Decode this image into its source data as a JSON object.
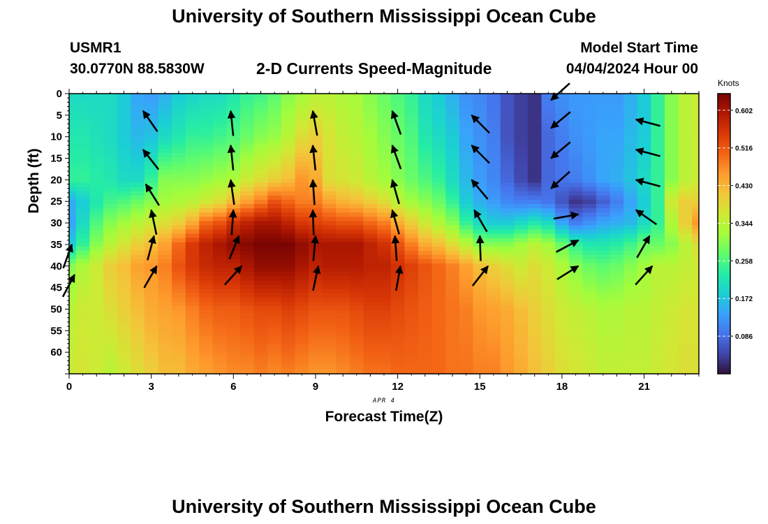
{
  "header": {
    "title": "University of Southern Mississippi Ocean Cube",
    "station_id": "USMR1",
    "location": "30.0770N  88.5830W",
    "plot_title": "2-D Currents Speed-Magnitude",
    "model_start_label": "Model Start Time",
    "model_start_value": "04/04/2024 Hour 00"
  },
  "footer": {
    "title": "University of Southern Mississippi Ocean Cube"
  },
  "chart_data": {
    "type": "heatmap",
    "title": "2-D Currents Speed-Magnitude",
    "xlabel": "Forecast Time(Z)",
    "ylabel": "Depth (ft)",
    "date_label": "APR 4",
    "xlim": [
      0,
      23
    ],
    "ylim": [
      65,
      0
    ],
    "x_ticks": [
      "0",
      "3",
      "6",
      "9",
      "12",
      "15",
      "18",
      "21"
    ],
    "x_tick_values": [
      0,
      3,
      6,
      9,
      12,
      15,
      18,
      21
    ],
    "y_ticks": [
      "0",
      "5",
      "10",
      "15",
      "20",
      "25",
      "30",
      "35",
      "40",
      "45",
      "50",
      "55",
      "60"
    ],
    "y_tick_values": [
      0,
      5,
      10,
      15,
      20,
      25,
      30,
      35,
      40,
      45,
      50,
      55,
      60
    ],
    "colorbar": {
      "unit": "Knots",
      "range": [
        0,
        0.64
      ],
      "ticks": [
        "0.602",
        "0.516",
        "0.430",
        "0.344",
        "0.258",
        "0.172",
        "0.086"
      ],
      "tick_values": [
        0.602,
        0.516,
        0.43,
        0.344,
        0.258,
        0.172,
        0.086
      ],
      "colors": [
        "#30123b",
        "#4145ab",
        "#4675ed",
        "#39a2fc",
        "#1bcfd4",
        "#24eca6",
        "#61fc6c",
        "#a4fc3b",
        "#d1e834",
        "#f3c63a",
        "#fe9b2d",
        "#f36315",
        "#d93806",
        "#b11901",
        "#7a0402"
      ]
    },
    "grid": false,
    "speed_anchors": {
      "hours": [
        0,
        0.5,
        1,
        1.5,
        2,
        2.5,
        3,
        3.5,
        4,
        4.5,
        5,
        5.5,
        6,
        6.5,
        7,
        7.5,
        8,
        8.5,
        9,
        9.5,
        10,
        10.5,
        11,
        11.5,
        12,
        12.5,
        13,
        13.5,
        14,
        14.5,
        15,
        15.5,
        16,
        16.5,
        17,
        17.5,
        18,
        18.5,
        19,
        19.5,
        20,
        20.5,
        21,
        21.5,
        22,
        22.5,
        23
      ],
      "depths": [
        0,
        10,
        20,
        25,
        30,
        35,
        40,
        50,
        65
      ],
      "speeds": [
        [
          0.2,
          0.22,
          0.24,
          0.15,
          0.14,
          0.18,
          0.3,
          0.34,
          0.36
        ],
        [
          0.2,
          0.22,
          0.24,
          0.18,
          0.2,
          0.24,
          0.33,
          0.36,
          0.37
        ],
        [
          0.2,
          0.21,
          0.23,
          0.22,
          0.26,
          0.3,
          0.36,
          0.36,
          0.36
        ],
        [
          0.2,
          0.2,
          0.22,
          0.25,
          0.3,
          0.34,
          0.4,
          0.38,
          0.34
        ],
        [
          0.18,
          0.18,
          0.2,
          0.26,
          0.32,
          0.37,
          0.42,
          0.4,
          0.36
        ],
        [
          0.14,
          0.16,
          0.2,
          0.28,
          0.34,
          0.4,
          0.45,
          0.42,
          0.38
        ],
        [
          0.13,
          0.17,
          0.24,
          0.3,
          0.36,
          0.42,
          0.46,
          0.44,
          0.4
        ],
        [
          0.15,
          0.2,
          0.3,
          0.32,
          0.38,
          0.45,
          0.48,
          0.45,
          0.42
        ],
        [
          0.18,
          0.22,
          0.3,
          0.33,
          0.4,
          0.5,
          0.52,
          0.46,
          0.42
        ],
        [
          0.19,
          0.24,
          0.3,
          0.34,
          0.44,
          0.55,
          0.55,
          0.48,
          0.44
        ],
        [
          0.2,
          0.24,
          0.31,
          0.36,
          0.5,
          0.58,
          0.57,
          0.5,
          0.45
        ],
        [
          0.2,
          0.25,
          0.32,
          0.38,
          0.52,
          0.6,
          0.58,
          0.51,
          0.46
        ],
        [
          0.22,
          0.26,
          0.33,
          0.42,
          0.56,
          0.62,
          0.58,
          0.51,
          0.47
        ],
        [
          0.24,
          0.28,
          0.36,
          0.45,
          0.58,
          0.63,
          0.6,
          0.52,
          0.47
        ],
        [
          0.25,
          0.3,
          0.38,
          0.48,
          0.6,
          0.64,
          0.62,
          0.53,
          0.48
        ],
        [
          0.27,
          0.31,
          0.4,
          0.52,
          0.6,
          0.64,
          0.62,
          0.53,
          0.47
        ],
        [
          0.3,
          0.34,
          0.42,
          0.5,
          0.58,
          0.64,
          0.62,
          0.54,
          0.48
        ],
        [
          0.32,
          0.38,
          0.46,
          0.48,
          0.55,
          0.62,
          0.6,
          0.53,
          0.47
        ],
        [
          0.34,
          0.4,
          0.44,
          0.48,
          0.54,
          0.6,
          0.58,
          0.52,
          0.46
        ],
        [
          0.34,
          0.37,
          0.38,
          0.45,
          0.53,
          0.6,
          0.59,
          0.52,
          0.46
        ],
        [
          0.33,
          0.35,
          0.37,
          0.43,
          0.52,
          0.6,
          0.59,
          0.52,
          0.47
        ],
        [
          0.32,
          0.34,
          0.36,
          0.42,
          0.52,
          0.6,
          0.59,
          0.53,
          0.48
        ],
        [
          0.3,
          0.32,
          0.34,
          0.4,
          0.5,
          0.58,
          0.58,
          0.54,
          0.49
        ],
        [
          0.28,
          0.3,
          0.32,
          0.38,
          0.48,
          0.56,
          0.58,
          0.54,
          0.49
        ],
        [
          0.26,
          0.28,
          0.3,
          0.34,
          0.44,
          0.52,
          0.56,
          0.53,
          0.5
        ],
        [
          0.24,
          0.26,
          0.28,
          0.32,
          0.4,
          0.48,
          0.54,
          0.52,
          0.5
        ],
        [
          0.2,
          0.22,
          0.26,
          0.3,
          0.36,
          0.44,
          0.52,
          0.51,
          0.5
        ],
        [
          0.18,
          0.2,
          0.24,
          0.28,
          0.33,
          0.42,
          0.5,
          0.5,
          0.5
        ],
        [
          0.15,
          0.18,
          0.2,
          0.24,
          0.3,
          0.38,
          0.48,
          0.49,
          0.49
        ],
        [
          0.12,
          0.14,
          0.16,
          0.18,
          0.24,
          0.34,
          0.45,
          0.48,
          0.49
        ],
        [
          0.11,
          0.12,
          0.13,
          0.15,
          0.2,
          0.3,
          0.42,
          0.46,
          0.48
        ],
        [
          0.09,
          0.1,
          0.11,
          0.13,
          0.18,
          0.3,
          0.4,
          0.45,
          0.48
        ],
        [
          0.06,
          0.06,
          0.08,
          0.11,
          0.18,
          0.3,
          0.38,
          0.44,
          0.46
        ],
        [
          0.04,
          0.04,
          0.05,
          0.1,
          0.2,
          0.32,
          0.36,
          0.42,
          0.44
        ],
        [
          0.03,
          0.03,
          0.03,
          0.1,
          0.22,
          0.34,
          0.38,
          0.4,
          0.42
        ],
        [
          0.1,
          0.08,
          0.08,
          0.09,
          0.2,
          0.32,
          0.36,
          0.38,
          0.4
        ],
        [
          0.12,
          0.1,
          0.09,
          0.06,
          0.14,
          0.28,
          0.33,
          0.36,
          0.38
        ],
        [
          0.13,
          0.12,
          0.1,
          0.03,
          0.1,
          0.24,
          0.3,
          0.35,
          0.37
        ],
        [
          0.13,
          0.13,
          0.12,
          0.04,
          0.12,
          0.22,
          0.28,
          0.34,
          0.36
        ],
        [
          0.13,
          0.14,
          0.14,
          0.07,
          0.14,
          0.22,
          0.27,
          0.33,
          0.35
        ],
        [
          0.13,
          0.14,
          0.15,
          0.1,
          0.15,
          0.23,
          0.28,
          0.33,
          0.35
        ],
        [
          0.15,
          0.16,
          0.17,
          0.14,
          0.16,
          0.25,
          0.3,
          0.34,
          0.35
        ],
        [
          0.18,
          0.18,
          0.2,
          0.18,
          0.2,
          0.28,
          0.32,
          0.34,
          0.35
        ],
        [
          0.24,
          0.24,
          0.24,
          0.24,
          0.24,
          0.28,
          0.34,
          0.35,
          0.36
        ],
        [
          0.3,
          0.3,
          0.3,
          0.36,
          0.33,
          0.3,
          0.34,
          0.36,
          0.37
        ],
        [
          0.34,
          0.34,
          0.34,
          0.4,
          0.4,
          0.34,
          0.35,
          0.37,
          0.38
        ],
        [
          0.36,
          0.36,
          0.36,
          0.4,
          0.46,
          0.38,
          0.36,
          0.37,
          0.38
        ]
      ]
    },
    "vectors": [
      {
        "hour": 0.1,
        "depth": 35,
        "dir_deg": 20
      },
      {
        "hour": 0.2,
        "depth": 42,
        "dir_deg": 28
      },
      {
        "hour": 2.7,
        "depth": 4,
        "dir_deg": -35
      },
      {
        "hour": 2.7,
        "depth": 13,
        "dir_deg": -38
      },
      {
        "hour": 2.8,
        "depth": 21,
        "dir_deg": -32
      },
      {
        "hour": 3.0,
        "depth": 27,
        "dir_deg": -12
      },
      {
        "hour": 3.1,
        "depth": 33,
        "dir_deg": 15
      },
      {
        "hour": 3.2,
        "depth": 40,
        "dir_deg": 30
      },
      {
        "hour": 5.9,
        "depth": 4,
        "dir_deg": -6
      },
      {
        "hour": 5.9,
        "depth": 12,
        "dir_deg": -6
      },
      {
        "hour": 5.9,
        "depth": 20,
        "dir_deg": -8
      },
      {
        "hour": 6.0,
        "depth": 27,
        "dir_deg": 4
      },
      {
        "hour": 6.2,
        "depth": 33,
        "dir_deg": 22
      },
      {
        "hour": 6.3,
        "depth": 40,
        "dir_deg": 42
      },
      {
        "hour": 8.9,
        "depth": 4,
        "dir_deg": -10
      },
      {
        "hour": 8.9,
        "depth": 12,
        "dir_deg": -6
      },
      {
        "hour": 8.9,
        "depth": 20,
        "dir_deg": -4
      },
      {
        "hour": 8.9,
        "depth": 27,
        "dir_deg": -2
      },
      {
        "hour": 9.0,
        "depth": 33,
        "dir_deg": 5
      },
      {
        "hour": 9.1,
        "depth": 40,
        "dir_deg": 12
      },
      {
        "hour": 11.8,
        "depth": 4,
        "dir_deg": -20
      },
      {
        "hour": 11.8,
        "depth": 12,
        "dir_deg": -20
      },
      {
        "hour": 11.8,
        "depth": 20,
        "dir_deg": -16
      },
      {
        "hour": 11.8,
        "depth": 27,
        "dir_deg": -16
      },
      {
        "hour": 11.9,
        "depth": 33,
        "dir_deg": -4
      },
      {
        "hour": 12.1,
        "depth": 40,
        "dir_deg": 10
      },
      {
        "hour": 14.7,
        "depth": 5,
        "dir_deg": -45
      },
      {
        "hour": 14.7,
        "depth": 12,
        "dir_deg": -45
      },
      {
        "hour": 14.7,
        "depth": 20,
        "dir_deg": -40
      },
      {
        "hour": 14.8,
        "depth": 27,
        "dir_deg": -30
      },
      {
        "hour": 15.0,
        "depth": 33,
        "dir_deg": -2
      },
      {
        "hour": 15.3,
        "depth": 40,
        "dir_deg": 38
      },
      {
        "hour": 17.6,
        "depth": 1.5,
        "dir_deg": -132
      },
      {
        "hour": 17.6,
        "depth": 8,
        "dir_deg": -130
      },
      {
        "hour": 17.6,
        "depth": 15,
        "dir_deg": -130
      },
      {
        "hour": 17.6,
        "depth": 22,
        "dir_deg": -132
      },
      {
        "hour": 18.6,
        "depth": 28,
        "dir_deg": 80
      },
      {
        "hour": 18.6,
        "depth": 34,
        "dir_deg": 62
      },
      {
        "hour": 18.6,
        "depth": 40,
        "dir_deg": 58
      },
      {
        "hour": 20.7,
        "depth": 6,
        "dir_deg": -75
      },
      {
        "hour": 20.7,
        "depth": 13,
        "dir_deg": -75
      },
      {
        "hour": 20.7,
        "depth": 20,
        "dir_deg": -75
      },
      {
        "hour": 20.7,
        "depth": 27,
        "dir_deg": -55
      },
      {
        "hour": 21.2,
        "depth": 33,
        "dir_deg": 30
      },
      {
        "hour": 21.3,
        "depth": 40,
        "dir_deg": 42
      }
    ]
  }
}
